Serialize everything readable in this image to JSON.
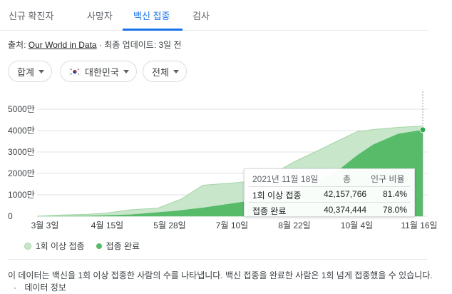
{
  "tabs": [
    {
      "label": "신규 확진자"
    },
    {
      "label": "사망자"
    },
    {
      "label": "백신 접종"
    },
    {
      "label": "검사"
    }
  ],
  "source": {
    "prefix": "출처:",
    "link": "Our World in Data",
    "updated": "· 최종 업데이트: 3일 전"
  },
  "filters": {
    "total": "합계",
    "country": "대한민국",
    "all": "전체"
  },
  "chart_data": {
    "type": "area",
    "title": "",
    "xlabel": "",
    "ylabel": "",
    "x_ticks": [
      "3월 3일",
      "4월 15일",
      "5월 28일",
      "7월 10일",
      "8월 22일",
      "10월 4일",
      "11월 16일"
    ],
    "y_ticks": [
      "5000만",
      "4000만",
      "3000만",
      "2000만",
      "1000만",
      "0"
    ],
    "ylim": [
      0,
      50000000
    ],
    "x_range": [
      "2021-02-26",
      "2021-11-18"
    ],
    "series": [
      {
        "name": "1회 이상 접종",
        "color": "#c8e6c9",
        "points": [
          [
            "2021-02-26",
            0
          ],
          [
            "2021-03-15",
            600000
          ],
          [
            "2021-04-01",
            900000
          ],
          [
            "2021-04-15",
            1500000
          ],
          [
            "2021-05-01",
            3000000
          ],
          [
            "2021-05-20",
            3800000
          ],
          [
            "2021-06-05",
            8000000
          ],
          [
            "2021-06-20",
            14500000
          ],
          [
            "2021-07-10",
            15500000
          ],
          [
            "2021-07-25",
            16500000
          ],
          [
            "2021-08-10",
            21000000
          ],
          [
            "2021-08-22",
            25500000
          ],
          [
            "2021-09-05",
            30000000
          ],
          [
            "2021-09-20",
            35000000
          ],
          [
            "2021-10-04",
            39500000
          ],
          [
            "2021-10-15",
            40500000
          ],
          [
            "2021-11-01",
            41500000
          ],
          [
            "2021-11-18",
            42157766
          ]
        ]
      },
      {
        "name": "접종 완료",
        "color": "#57bb6a",
        "points": [
          [
            "2021-02-26",
            0
          ],
          [
            "2021-04-01",
            200000
          ],
          [
            "2021-05-01",
            800000
          ],
          [
            "2021-06-01",
            2500000
          ],
          [
            "2021-06-20",
            4000000
          ],
          [
            "2021-07-10",
            6000000
          ],
          [
            "2021-07-25",
            7500000
          ],
          [
            "2021-08-10",
            9500000
          ],
          [
            "2021-08-22",
            12000000
          ],
          [
            "2021-09-05",
            15500000
          ],
          [
            "2021-09-20",
            21000000
          ],
          [
            "2021-10-04",
            28500000
          ],
          [
            "2021-10-15",
            33500000
          ],
          [
            "2021-11-01",
            38500000
          ],
          [
            "2021-11-18",
            40374444
          ]
        ]
      }
    ],
    "legend": "bottom-left",
    "grid": true
  },
  "tooltip": {
    "date": "2021년 11월 18일",
    "col_total": "총",
    "col_ratio": "인구 비율",
    "rows": [
      {
        "label": "1회 이상 접종",
        "total": "42,157,766",
        "ratio": "81.4%"
      },
      {
        "label": "접종 완료",
        "total": "40,374,444",
        "ratio": "78.0%"
      }
    ]
  },
  "legend": {
    "first": "1회 이상 접종",
    "full": "접종 완료"
  },
  "footer": {
    "text": "이 데이터는 백신을 1회 이상 접종한 사람의 수를 나타냅니다. 백신 접종을 완료한 사람은 1회 넘게 접종했을 수 있습니다.",
    "sep": "·",
    "link": "데이터 정보"
  }
}
